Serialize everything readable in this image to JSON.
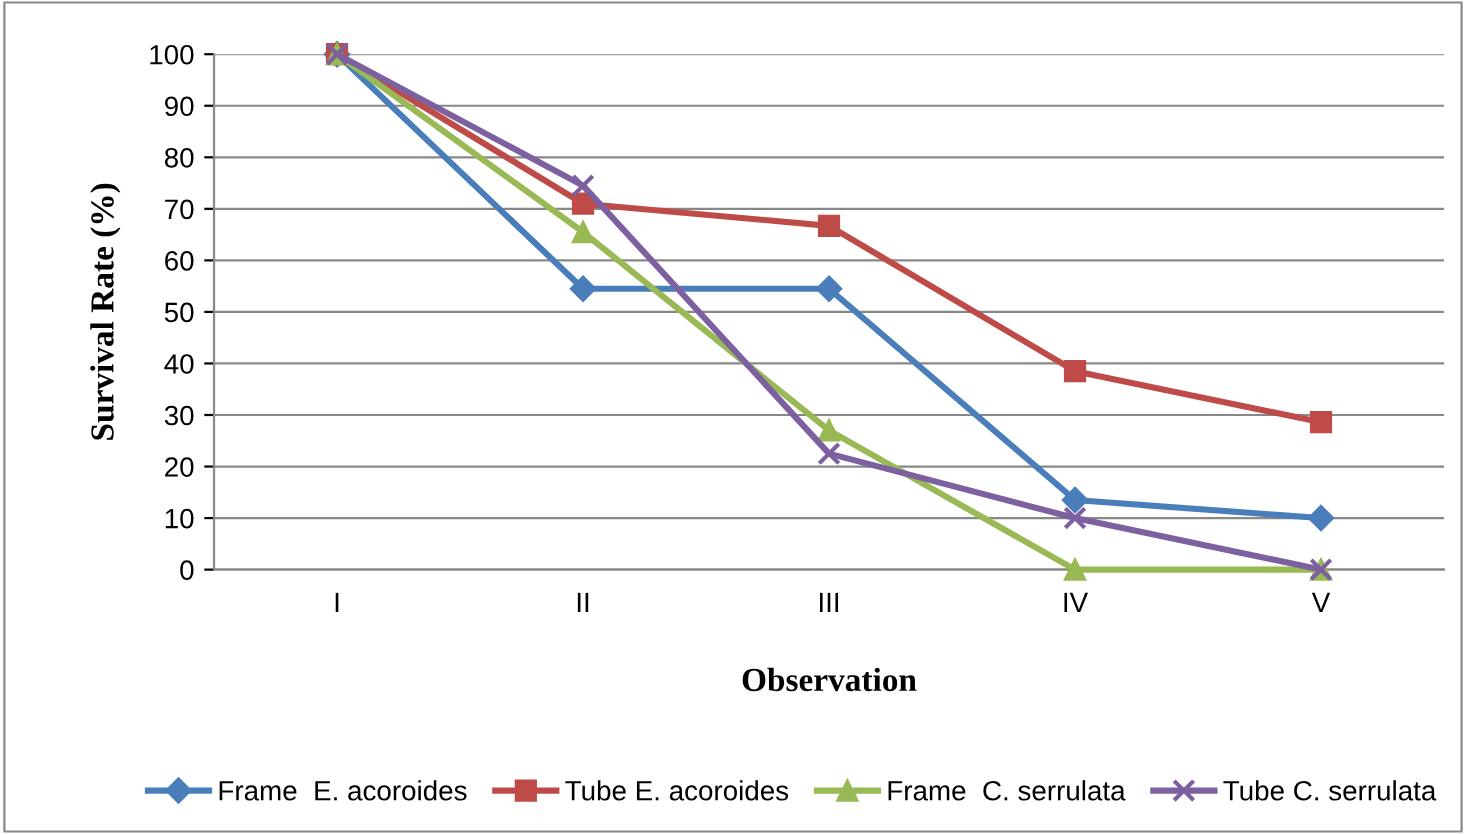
{
  "chart_data": {
    "type": "line",
    "xlabel": "Observation",
    "ylabel": "Survival Rate (%)",
    "categories": [
      "I",
      "II",
      "III",
      "IV",
      "V"
    ],
    "series": [
      {
        "name": "Frame  E. acoroides",
        "color": "#4a7ebb",
        "marker": "diamond",
        "values": [
          100,
          54.5,
          54.5,
          13.5,
          10
        ]
      },
      {
        "name": "Tube E. acoroides",
        "color": "#be4b48",
        "marker": "square",
        "values": [
          100,
          71,
          66.7,
          38.5,
          28.6
        ]
      },
      {
        "name": "Frame  C. serrulata",
        "color": "#98b954",
        "marker": "triangle",
        "values": [
          100,
          65.5,
          27,
          0,
          0
        ]
      },
      {
        "name": "Tube C. serrulata",
        "color": "#7d60a0",
        "marker": "cross",
        "values": [
          100,
          74.5,
          22.5,
          10,
          0
        ]
      }
    ],
    "ylim": [
      0,
      100
    ],
    "yticks": [
      0,
      10,
      20,
      30,
      40,
      50,
      60,
      70,
      80,
      90,
      100
    ],
    "grid": "y",
    "legend": "bottom"
  }
}
